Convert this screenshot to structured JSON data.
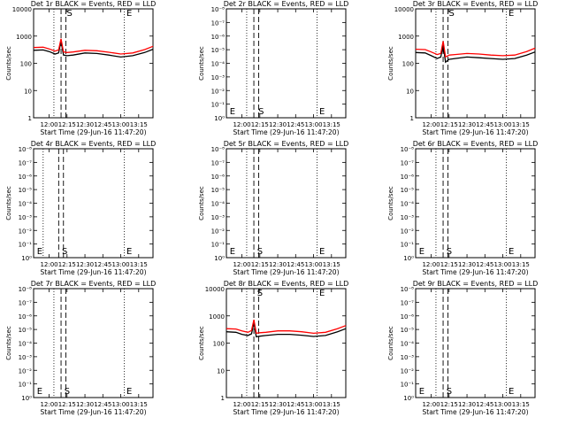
{
  "chart_data": [
    {
      "type": "line",
      "title": "Det 1r BLACK = Events, RED = LLD",
      "xlabel": "Start Time (29-Jun-16 11:47:20)",
      "ylabel": "Counts/sec",
      "scale": "log",
      "ytick_labels": [
        "1",
        "10",
        "100",
        "1000",
        "10000"
      ],
      "ylim": [
        1,
        10000
      ],
      "xlim": [
        "11:47",
        "13:27"
      ],
      "xtick_labels": [
        "12:00",
        "12:15",
        "12:30",
        "12:45",
        "13:00",
        "13:15"
      ],
      "x": [
        "11:47",
        "11:55",
        "12:00",
        "12:05",
        "12:08",
        "12:10",
        "12:12",
        "12:15",
        "12:20",
        "12:30",
        "12:40",
        "12:50",
        "13:00",
        "13:10",
        "13:20",
        "13:27"
      ],
      "series": [
        {
          "color": "#000000",
          "values": [
            300,
            310,
            270,
            220,
            240,
            650,
            200,
            190,
            200,
            240,
            230,
            200,
            170,
            190,
            250,
            330
          ]
        },
        {
          "color": "#ff0000",
          "values": [
            380,
            390,
            340,
            280,
            310,
            800,
            260,
            250,
            260,
            300,
            290,
            255,
            220,
            240,
            320,
            420
          ]
        }
      ],
      "vlines_dotted": [
        "12:04",
        "13:03"
      ],
      "vlines_dashed": [
        "12:10",
        "12:14"
      ],
      "markers": [
        {
          "label": "E",
          "at": "13:04"
        },
        {
          "label": "S",
          "at": "12:14"
        }
      ],
      "grid": false
    },
    {
      "type": "line",
      "title": "Det 2r BLACK = Events, RED = LLD",
      "xlabel": "Start Time (29-Jun-16 11:47:20)",
      "ylabel": "Counts/sec",
      "scale": "log",
      "ytick_labels": [
        "10⁰",
        "10⁻¹",
        "10⁻²",
        "10⁻³",
        "10⁻⁴",
        "10⁻⁵",
        "10⁻⁶",
        "10⁻⁷",
        "10⁻⁸"
      ],
      "xlim": [
        "11:47",
        "13:27"
      ],
      "xtick_labels": [
        "12:00",
        "12:15",
        "12:30",
        "12:45",
        "13:00",
        "13:15"
      ],
      "series": [],
      "vlines_dotted": [
        "12:04",
        "13:03"
      ],
      "vlines_dashed": [
        "12:10",
        "12:14"
      ],
      "markers": [
        {
          "label": "E",
          "at": "11:49"
        },
        {
          "label": "S",
          "at": "12:13"
        },
        {
          "label": "E",
          "at": "13:04"
        }
      ],
      "grid": false
    },
    {
      "type": "line",
      "title": "Det 3r BLACK = Events, RED = LLD",
      "xlabel": "Start Time (29-Jun-16 11:47:20)",
      "ylabel": "Counts/sec",
      "scale": "log",
      "ytick_labels": [
        "1",
        "10",
        "100",
        "1000",
        "10000"
      ],
      "ylim": [
        1,
        10000
      ],
      "xlim": [
        "11:47",
        "13:27"
      ],
      "xtick_labels": [
        "12:00",
        "12:15",
        "12:30",
        "12:45",
        "13:00",
        "13:15"
      ],
      "x": [
        "11:47",
        "11:55",
        "12:00",
        "12:05",
        "12:08",
        "12:10",
        "12:12",
        "12:15",
        "12:20",
        "12:30",
        "12:40",
        "12:50",
        "13:00",
        "13:10",
        "13:20",
        "13:27"
      ],
      "series": [
        {
          "color": "#000000",
          "values": [
            250,
            240,
            190,
            150,
            170,
            450,
            110,
            140,
            150,
            170,
            160,
            150,
            140,
            150,
            200,
            260
          ]
        },
        {
          "color": "#ff0000",
          "values": [
            330,
            320,
            260,
            210,
            230,
            650,
            170,
            200,
            210,
            230,
            220,
            200,
            190,
            200,
            270,
            360
          ]
        }
      ],
      "vlines_dotted": [
        "12:04",
        "13:03"
      ],
      "vlines_dashed": [
        "12:10",
        "12:14"
      ],
      "markers": [
        {
          "label": "S",
          "at": "12:14"
        },
        {
          "label": "E",
          "at": "13:04"
        }
      ],
      "grid": false
    },
    {
      "type": "line",
      "title": "Det 4r BLACK = Events, RED = LLD",
      "xlabel": "Start Time (29-Jun-16 11:47:20)",
      "ylabel": "Counts/sec",
      "scale": "log",
      "ytick_labels": [
        "10⁰",
        "10⁻¹",
        "10⁻²",
        "10⁻³",
        "10⁻⁴",
        "10⁻⁵",
        "10⁻⁶",
        "10⁻⁷",
        "10⁻⁸"
      ],
      "xlim": [
        "11:47",
        "13:27"
      ],
      "xtick_labels": [
        "12:00",
        "12:15",
        "12:30",
        "12:45",
        "13:00",
        "13:15"
      ],
      "series": [],
      "vlines_dotted": [
        "11:55",
        "13:03"
      ],
      "vlines_dashed": [
        "12:08",
        "12:12"
      ],
      "markers": [
        {
          "label": "E",
          "at": "11:49"
        },
        {
          "label": "S",
          "at": "12:10"
        },
        {
          "label": "E",
          "at": "13:04"
        }
      ],
      "grid": false
    },
    {
      "type": "line",
      "title": "Det 5r BLACK = Events, RED = LLD",
      "xlabel": "Start Time (29-Jun-16 11:47:20)",
      "ylabel": "Counts/sec",
      "scale": "log",
      "ytick_labels": [
        "10⁰",
        "10⁻¹",
        "10⁻²",
        "10⁻³",
        "10⁻⁴",
        "10⁻⁵",
        "10⁻⁶",
        "10⁻⁷",
        "10⁻⁸"
      ],
      "xlim": [
        "11:47",
        "13:27"
      ],
      "xtick_labels": [
        "12:00",
        "12:15",
        "12:30",
        "12:45",
        "13:00",
        "13:15"
      ],
      "series": [],
      "vlines_dotted": [
        "12:04",
        "13:03"
      ],
      "vlines_dashed": [
        "12:10",
        "12:14"
      ],
      "markers": [
        {
          "label": "E",
          "at": "11:49"
        },
        {
          "label": "S",
          "at": "12:12"
        },
        {
          "label": "E",
          "at": "13:04"
        }
      ],
      "grid": false
    },
    {
      "type": "line",
      "title": "Det 6r BLACK = Events, RED = LLD",
      "xlabel": "Start Time (29-Jun-16 11:47:20)",
      "ylabel": "Counts/sec",
      "scale": "log",
      "ytick_labels": [
        "10⁰",
        "10⁻¹",
        "10⁻²",
        "10⁻³",
        "10⁻⁴",
        "10⁻⁵",
        "10⁻⁶",
        "10⁻⁷",
        "10⁻⁸"
      ],
      "xlim": [
        "11:47",
        "13:27"
      ],
      "xtick_labels": [
        "12:00",
        "12:15",
        "12:30",
        "12:45",
        "13:00",
        "13:15"
      ],
      "series": [],
      "vlines_dotted": [
        "12:04",
        "13:03"
      ],
      "vlines_dashed": [
        "12:10",
        "12:14"
      ],
      "markers": [
        {
          "label": "E",
          "at": "11:49"
        },
        {
          "label": "S",
          "at": "12:12"
        },
        {
          "label": "E",
          "at": "13:04"
        }
      ],
      "grid": false
    },
    {
      "type": "line",
      "title": "Det 7r BLACK = Events, RED = LLD",
      "xlabel": "Start Time (29-Jun-16 11:47:20)",
      "ylabel": "Counts/sec",
      "scale": "log",
      "ytick_labels": [
        "10⁰",
        "10⁻¹",
        "10⁻²",
        "10⁻³",
        "10⁻⁴",
        "10⁻⁵",
        "10⁻⁶",
        "10⁻⁷",
        "10⁻⁸"
      ],
      "xlim": [
        "11:47",
        "13:27"
      ],
      "xtick_labels": [
        "12:00",
        "12:15",
        "12:30",
        "12:45",
        "13:00",
        "13:15"
      ],
      "series": [],
      "vlines_dotted": [
        "12:04",
        "13:03"
      ],
      "vlines_dashed": [
        "12:10",
        "12:14"
      ],
      "markers": [
        {
          "label": "E",
          "at": "11:49"
        },
        {
          "label": "S",
          "at": "12:12"
        },
        {
          "label": "E",
          "at": "13:04"
        }
      ],
      "grid": false
    },
    {
      "type": "line",
      "title": "Det 8r BLACK = Events, RED = LLD",
      "xlabel": "Start Time (29-Jun-16 11:47:20)",
      "ylabel": "Counts/sec",
      "scale": "log",
      "ytick_labels": [
        "1",
        "10",
        "100",
        "1000",
        "10000"
      ],
      "ylim": [
        1,
        10000
      ],
      "xlim": [
        "11:47",
        "13:27"
      ],
      "xtick_labels": [
        "12:00",
        "12:15",
        "12:30",
        "12:45",
        "13:00",
        "13:15"
      ],
      "x": [
        "11:47",
        "11:55",
        "12:00",
        "12:05",
        "12:08",
        "12:10",
        "12:12",
        "12:15",
        "12:20",
        "12:30",
        "12:40",
        "12:50",
        "13:00",
        "13:10",
        "13:20",
        "13:27"
      ],
      "series": [
        {
          "color": "#000000",
          "values": [
            260,
            250,
            210,
            190,
            220,
            560,
            170,
            180,
            190,
            210,
            210,
            195,
            175,
            190,
            260,
            340
          ]
        },
        {
          "color": "#ff0000",
          "values": [
            340,
            330,
            280,
            250,
            290,
            720,
            230,
            240,
            250,
            280,
            280,
            260,
            230,
            250,
            340,
            440
          ]
        }
      ],
      "vlines_dotted": [
        "12:04",
        "13:03"
      ],
      "vlines_dashed": [
        "12:10",
        "12:14"
      ],
      "markers": [
        {
          "label": "S",
          "at": "12:12"
        },
        {
          "label": "E",
          "at": "13:04"
        }
      ],
      "grid": false
    },
    {
      "type": "line",
      "title": "Det 9r BLACK = Events, RED = LLD",
      "xlabel": "Start Time (29-Jun-16 11:47:20)",
      "ylabel": "Counts/sec",
      "scale": "log",
      "ytick_labels": [
        "10⁰",
        "10⁻¹",
        "10⁻²",
        "10⁻³",
        "10⁻⁴",
        "10⁻⁵",
        "10⁻⁶",
        "10⁻⁷",
        "10⁻⁸"
      ],
      "xlim": [
        "11:47",
        "13:27"
      ],
      "xtick_labels": [
        "12:00",
        "12:15",
        "12:30",
        "12:45",
        "13:00",
        "13:15"
      ],
      "series": [],
      "vlines_dotted": [
        "12:04",
        "13:03"
      ],
      "vlines_dashed": [
        "12:10",
        "12:14"
      ],
      "markers": [
        {
          "label": "E",
          "at": "11:49"
        },
        {
          "label": "S",
          "at": "12:12"
        },
        {
          "label": "E",
          "at": "13:04"
        }
      ],
      "grid": false
    }
  ]
}
